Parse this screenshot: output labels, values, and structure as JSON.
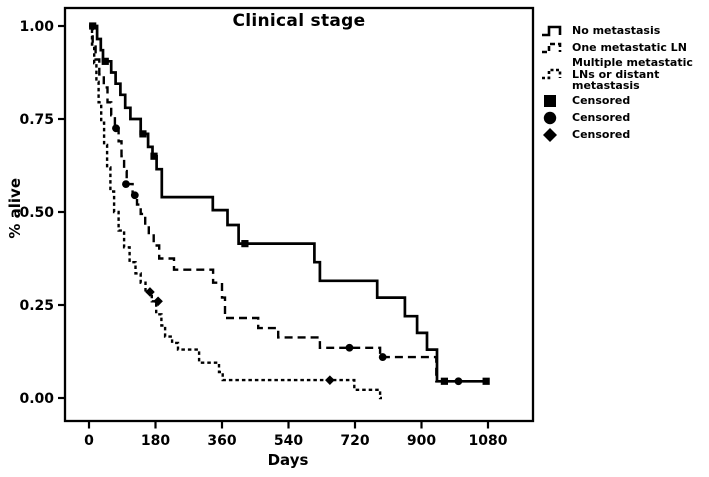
{
  "figure": {
    "title": "Clinical stage",
    "xlabel": "Days",
    "ylabel": "% alive",
    "y_tick_labels": [
      "0.00",
      "0.25",
      "0.50",
      "0.75",
      "1.00"
    ]
  },
  "legend": {
    "items": [
      {
        "kind": "line",
        "style": "solid",
        "label": "No metastasis"
      },
      {
        "kind": "line",
        "style": "dashed",
        "label": "One metastatic LN"
      },
      {
        "kind": "line",
        "style": "dashdot",
        "label": "Multiple metastatic LNs or distant metastasis"
      },
      {
        "kind": "marker",
        "marker": "square",
        "label": "Censored"
      },
      {
        "kind": "marker",
        "marker": "circle",
        "label": "Censored"
      },
      {
        "kind": "marker",
        "marker": "diamond",
        "label": "Censored"
      }
    ]
  },
  "chart_data": {
    "type": "line",
    "subtype": "kaplan-meier-step",
    "title": "Clinical stage",
    "xlabel": "Days",
    "ylabel": "% alive",
    "xlim": [
      -60,
      1200
    ],
    "ylim": [
      -0.06,
      1.05
    ],
    "x_ticks": [
      0,
      180,
      360,
      540,
      720,
      900,
      1080
    ],
    "y_ticks": [
      0.0,
      0.25,
      0.5,
      0.75,
      1.0
    ],
    "grid": false,
    "legend_position": "right-outside",
    "line_color": "#000000",
    "series": [
      {
        "name": "No metastasis",
        "style": "solid",
        "censor_marker": "square",
        "steps": [
          [
            0,
            1.0
          ],
          [
            22,
            0.965
          ],
          [
            32,
            0.935
          ],
          [
            38,
            0.905
          ],
          [
            60,
            0.875
          ],
          [
            72,
            0.845
          ],
          [
            85,
            0.815
          ],
          [
            98,
            0.78
          ],
          [
            112,
            0.75
          ],
          [
            140,
            0.71
          ],
          [
            160,
            0.675
          ],
          [
            172,
            0.65
          ],
          [
            183,
            0.615
          ],
          [
            197,
            0.54
          ],
          [
            335,
            0.505
          ],
          [
            375,
            0.465
          ],
          [
            405,
            0.415
          ],
          [
            610,
            0.365
          ],
          [
            625,
            0.315
          ],
          [
            780,
            0.27
          ],
          [
            855,
            0.22
          ],
          [
            888,
            0.175
          ],
          [
            915,
            0.13
          ],
          [
            942,
            0.045
          ],
          [
            1075,
            0.045
          ]
        ],
        "censored": [
          [
            10,
            1.0
          ],
          [
            44,
            0.905
          ],
          [
            146,
            0.71
          ],
          [
            176,
            0.65
          ],
          [
            422,
            0.415
          ],
          [
            962,
            0.045
          ],
          [
            1075,
            0.045
          ]
        ]
      },
      {
        "name": "One metastatic LN",
        "style": "dashed",
        "censor_marker": "circle",
        "steps": [
          [
            0,
            1.0
          ],
          [
            10,
            0.955
          ],
          [
            18,
            0.91
          ],
          [
            28,
            0.87
          ],
          [
            40,
            0.835
          ],
          [
            50,
            0.795
          ],
          [
            60,
            0.76
          ],
          [
            70,
            0.725
          ],
          [
            80,
            0.69
          ],
          [
            88,
            0.65
          ],
          [
            95,
            0.61
          ],
          [
            102,
            0.575
          ],
          [
            118,
            0.545
          ],
          [
            130,
            0.52
          ],
          [
            140,
            0.495
          ],
          [
            152,
            0.465
          ],
          [
            162,
            0.44
          ],
          [
            175,
            0.41
          ],
          [
            190,
            0.375
          ],
          [
            230,
            0.345
          ],
          [
            336,
            0.31
          ],
          [
            360,
            0.27
          ],
          [
            368,
            0.215
          ],
          [
            458,
            0.188
          ],
          [
            512,
            0.163
          ],
          [
            625,
            0.135
          ],
          [
            788,
            0.11
          ],
          [
            940,
            0.045
          ],
          [
            1015,
            0.045
          ]
        ],
        "censored": [
          [
            73,
            0.725
          ],
          [
            100,
            0.575
          ],
          [
            124,
            0.545
          ],
          [
            705,
            0.135
          ],
          [
            795,
            0.11
          ],
          [
            1000,
            0.045
          ]
        ]
      },
      {
        "name": "Multiple metastatic LNs or distant metastasis",
        "style": "dashdot",
        "censor_marker": "diamond",
        "steps": [
          [
            0,
            1.0
          ],
          [
            8,
            0.95
          ],
          [
            14,
            0.9
          ],
          [
            20,
            0.85
          ],
          [
            26,
            0.795
          ],
          [
            33,
            0.74
          ],
          [
            41,
            0.68
          ],
          [
            49,
            0.62
          ],
          [
            58,
            0.555
          ],
          [
            68,
            0.5
          ],
          [
            80,
            0.45
          ],
          [
            95,
            0.405
          ],
          [
            110,
            0.365
          ],
          [
            126,
            0.335
          ],
          [
            140,
            0.31
          ],
          [
            153,
            0.285
          ],
          [
            170,
            0.26
          ],
          [
            182,
            0.225
          ],
          [
            196,
            0.195
          ],
          [
            206,
            0.165
          ],
          [
            225,
            0.148
          ],
          [
            241,
            0.13
          ],
          [
            298,
            0.095
          ],
          [
            352,
            0.07
          ],
          [
            362,
            0.048
          ],
          [
            718,
            0.022
          ],
          [
            788,
            0.0
          ],
          [
            793,
            0.0
          ]
        ],
        "censored": [
          [
            165,
            0.285
          ],
          [
            187,
            0.26
          ],
          [
            652,
            0.048
          ]
        ]
      }
    ]
  }
}
